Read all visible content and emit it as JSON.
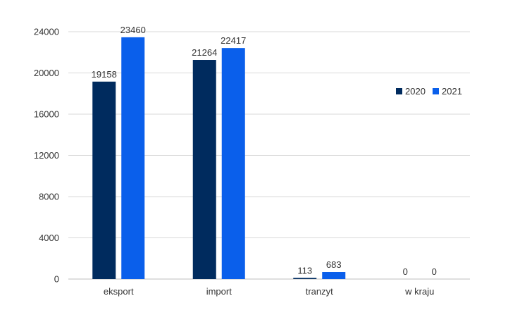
{
  "chart_data": {
    "type": "bar",
    "categories": [
      "eksport",
      "import",
      "tranzyt",
      "w kraju"
    ],
    "series": [
      {
        "name": "2020",
        "values": [
          19158,
          21264,
          113,
          0
        ],
        "color": "#002B5E"
      },
      {
        "name": "2021",
        "values": [
          23460,
          22417,
          683,
          0
        ],
        "color": "#0A5FEB"
      }
    ],
    "yticks": [
      "0",
      "4000",
      "8000",
      "12000",
      "16000",
      "20000",
      "24000"
    ],
    "ylim": [
      0,
      24000
    ],
    "grid": true,
    "legend_position": "right",
    "colors": {
      "grid": "#D9D9D9",
      "axis": "#BFBFBF",
      "text": "#333333"
    }
  }
}
